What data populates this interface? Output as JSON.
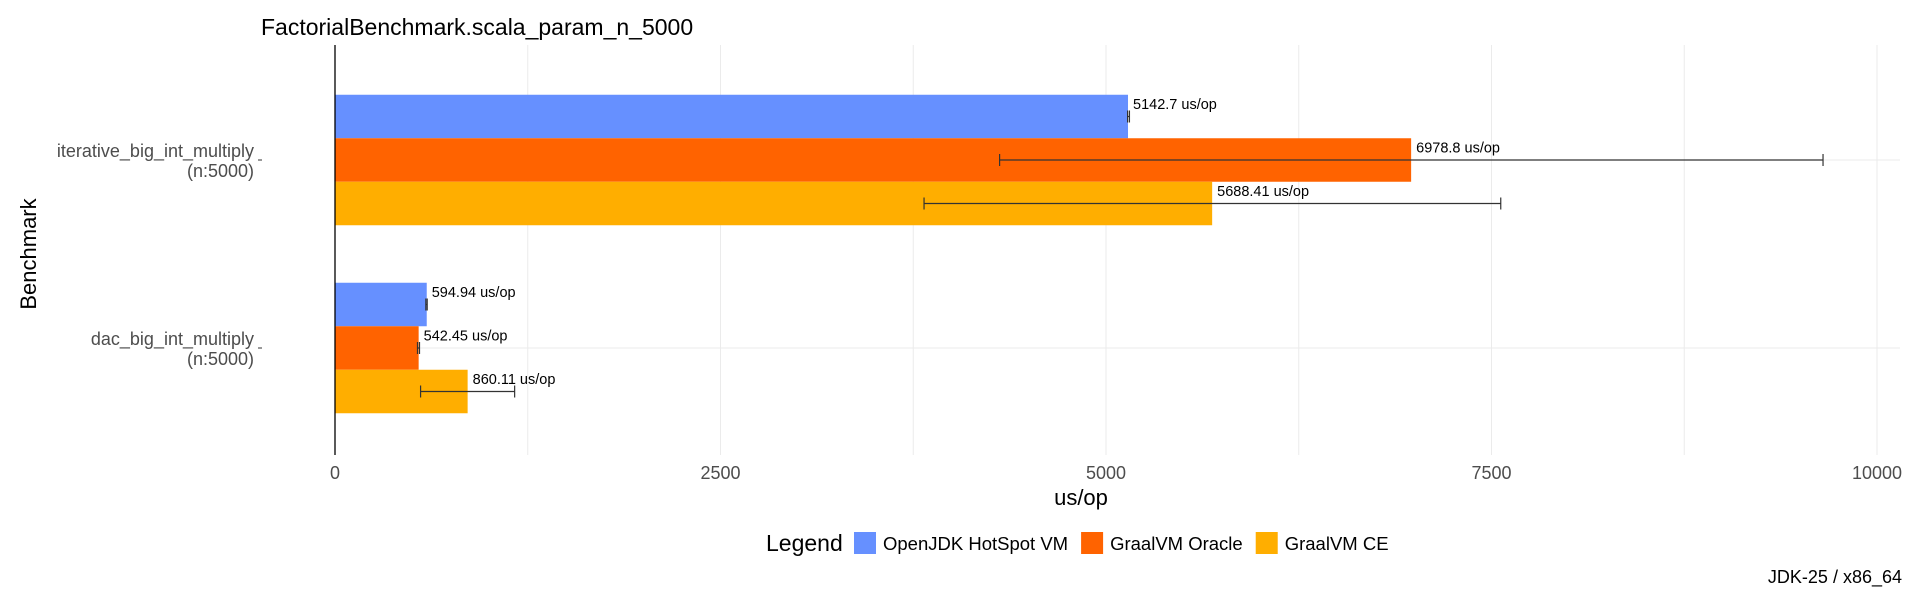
{
  "chart_data": {
    "type": "bar",
    "orientation": "horizontal",
    "title": "FactorialBenchmark.scala_param_n_5000",
    "xlabel": "us/op",
    "ylabel": "Benchmark",
    "xlim": [
      0,
      10000
    ],
    "x_ticks": [
      "0",
      "2500",
      "5000",
      "7500",
      "10000"
    ],
    "x_tick_values": [
      0,
      2500,
      5000,
      7500,
      10000
    ],
    "grid": true,
    "categories": [
      {
        "line1": "iterative_big_int_multiply",
        "line2": "(n:5000)"
      },
      {
        "line1": "dac_big_int_multiply",
        "line2": "(n:5000)"
      }
    ],
    "series": [
      {
        "name": "OpenJDK HotSpot VM",
        "color": "#6690ff",
        "values": [
          5142.7,
          594.94
        ],
        "errors": [
          [
            5140,
            5152
          ],
          [
            589,
            598
          ]
        ],
        "labels": [
          "5142.7 us/op",
          "594.94 us/op"
        ]
      },
      {
        "name": "GraalVM Oracle",
        "color": "#ff6300",
        "values": [
          6978.8,
          542.45
        ],
        "errors": [
          [
            4310,
            9650
          ],
          [
            535,
            548
          ]
        ],
        "labels": [
          "6978.8 us/op",
          "542.45 us/op"
        ]
      },
      {
        "name": "GraalVM CE",
        "color": "#ffae00",
        "values": [
          5688.41,
          860.11
        ],
        "errors": [
          [
            3820,
            7560
          ],
          [
            555,
            1165
          ]
        ],
        "labels": [
          "5688.41 us/op",
          "860.11 us/op"
        ]
      }
    ],
    "legend": {
      "title": "Legend",
      "position": "bottom"
    },
    "caption": "JDK-25 / x86_64"
  }
}
